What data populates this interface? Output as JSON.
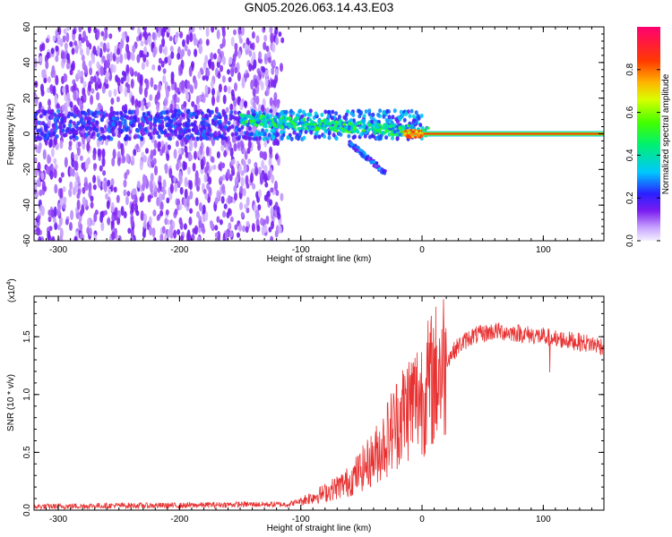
{
  "title": "GN05.2026.063.14.43.E03",
  "colors": {
    "snr_line": "#e83232",
    "axis": "#000000",
    "spectrogram_low": "#c8a8ff",
    "spectrogram_mid": "#5a00d8"
  },
  "chart_data": [
    {
      "type": "heatmap",
      "name": "spectrogram",
      "xlabel": "Height of straight line (km)",
      "ylabel": "Frequency (Hz)",
      "xlim": [
        -320,
        150
      ],
      "ylim": [
        -60,
        60
      ],
      "xticks": [
        -300,
        -200,
        -100,
        0,
        100
      ],
      "yticks": [
        -60,
        -40,
        -20,
        0,
        20,
        40,
        60
      ],
      "colorbar": {
        "label": "Normalized spectral amplitude",
        "range": [
          0,
          1
        ],
        "ticks": [
          0.0,
          0.2,
          0.4,
          0.6,
          0.8
        ],
        "colormap": "rainbow"
      },
      "features": {
        "broadband_noise_region_km": [
          -320,
          -120
        ],
        "narrow_carrier_from_km": 0,
        "carrier_frequency_hz": 0,
        "descending_branch_km": [
          -60,
          -30
        ],
        "descending_branch_hz": [
          -5,
          -22
        ]
      },
      "grid": false
    },
    {
      "type": "line",
      "name": "snr",
      "xlabel": "Height of straight line (km)",
      "ylabel": "SNR (10 * v/v)",
      "y_multiplier": "(x10",
      "y_multiplier_exp": "4",
      "y_multiplier_close": ")",
      "xlim": [
        -320,
        150
      ],
      "ylim": [
        0,
        1.85
      ],
      "xticks": [
        -300,
        -200,
        -100,
        0,
        100
      ],
      "yticks": [
        0.0,
        0.5,
        1.0,
        1.5
      ],
      "envelope": {
        "x": [
          -320,
          -250,
          -200,
          -150,
          -110,
          -100,
          -80,
          -60,
          -40,
          -30,
          -20,
          -10,
          0,
          10,
          20,
          30,
          40,
          60,
          80,
          100,
          120,
          150
        ],
        "y": [
          0.03,
          0.04,
          0.04,
          0.05,
          0.05,
          0.08,
          0.15,
          0.25,
          0.45,
          0.6,
          0.78,
          0.92,
          1.0,
          1.15,
          1.3,
          1.42,
          1.5,
          1.55,
          1.53,
          1.5,
          1.47,
          1.42
        ]
      },
      "grid": false
    }
  ]
}
